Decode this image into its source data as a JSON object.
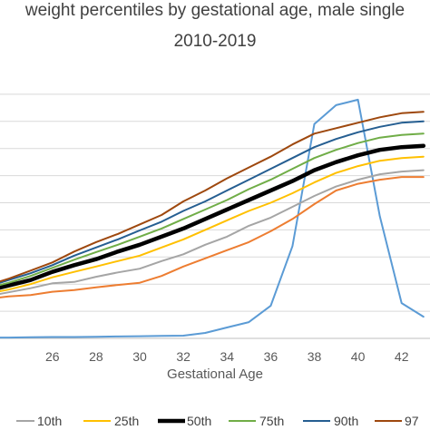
{
  "chart_data": {
    "type": "line",
    "title_line1": "weight percentiles by gestational age, male single",
    "title_line2": "2010-2019",
    "xlabel": "Gestational Age",
    "ylabel": "",
    "xlim": [
      23.6,
      43.3
    ],
    "ylim": [
      0,
      10
    ],
    "y_gridlines": [
      1,
      2,
      3,
      4,
      5,
      6,
      7,
      8,
      9
    ],
    "grid": true,
    "legend_position": "bottom",
    "x_ticks": [
      "26",
      "28",
      "30",
      "32",
      "34",
      "36",
      "38",
      "40",
      "42"
    ],
    "x_tick_values": [
      26,
      28,
      30,
      32,
      34,
      36,
      38,
      40,
      42
    ],
    "x": [
      23,
      24,
      25,
      26,
      27,
      28,
      29,
      30,
      31,
      32,
      33,
      34,
      35,
      36,
      37,
      38,
      39,
      40,
      41,
      42,
      43
    ],
    "series": [
      {
        "name": "",
        "color": "#5b9bd5",
        "width": 2,
        "values": [
          0.03,
          0.03,
          0.04,
          0.05,
          0.05,
          0.06,
          0.07,
          0.08,
          0.09,
          0.1,
          0.2,
          0.4,
          0.6,
          1.2,
          3.4,
          7.9,
          8.6,
          8.8,
          4.5,
          1.3,
          0.8
        ]
      },
      {
        "name": "",
        "color": "#ed7d31",
        "width": 2,
        "values": [
          1.45,
          1.55,
          1.6,
          1.72,
          1.78,
          1.88,
          1.97,
          2.05,
          2.3,
          2.65,
          2.95,
          3.25,
          3.55,
          3.95,
          4.4,
          4.95,
          5.45,
          5.7,
          5.85,
          5.95,
          5.95
        ]
      },
      {
        "name": "10th",
        "color": "#a5a5a5",
        "width": 2,
        "values": [
          1.55,
          1.7,
          1.85,
          2.03,
          2.08,
          2.27,
          2.43,
          2.57,
          2.85,
          3.1,
          3.45,
          3.75,
          4.15,
          4.45,
          4.85,
          5.25,
          5.6,
          5.85,
          6.05,
          6.15,
          6.2
        ]
      },
      {
        "name": "25th",
        "color": "#ffc000",
        "width": 2,
        "values": [
          1.65,
          1.8,
          2.0,
          2.25,
          2.45,
          2.65,
          2.85,
          3.05,
          3.35,
          3.65,
          4.0,
          4.35,
          4.7,
          5.0,
          5.35,
          5.75,
          6.1,
          6.35,
          6.55,
          6.65,
          6.7
        ]
      },
      {
        "name": "50th",
        "color": "#000000",
        "width": 4.5,
        "values": [
          1.75,
          1.95,
          2.15,
          2.45,
          2.7,
          2.92,
          3.2,
          3.45,
          3.75,
          4.05,
          4.4,
          4.75,
          5.1,
          5.45,
          5.8,
          6.2,
          6.5,
          6.75,
          6.95,
          7.05,
          7.1
        ]
      },
      {
        "name": "75th",
        "color": "#70ad47",
        "width": 2,
        "values": [
          1.85,
          2.05,
          2.3,
          2.6,
          2.9,
          3.18,
          3.45,
          3.75,
          4.05,
          4.4,
          4.75,
          5.1,
          5.5,
          5.85,
          6.25,
          6.65,
          6.95,
          7.2,
          7.4,
          7.5,
          7.55
        ]
      },
      {
        "name": "90th",
        "color": "#255e91",
        "width": 2,
        "values": [
          1.9,
          2.15,
          2.4,
          2.7,
          3.05,
          3.35,
          3.65,
          3.98,
          4.3,
          4.7,
          5.05,
          5.45,
          5.85,
          6.25,
          6.65,
          7.05,
          7.35,
          7.6,
          7.8,
          7.95,
          8.0
        ]
      },
      {
        "name": "97",
        "color": "#9e480e",
        "width": 2,
        "values": [
          1.95,
          2.2,
          2.5,
          2.8,
          3.2,
          3.55,
          3.85,
          4.2,
          4.55,
          5.05,
          5.45,
          5.9,
          6.3,
          6.7,
          7.15,
          7.55,
          7.75,
          7.95,
          8.15,
          8.3,
          8.35
        ]
      }
    ]
  }
}
